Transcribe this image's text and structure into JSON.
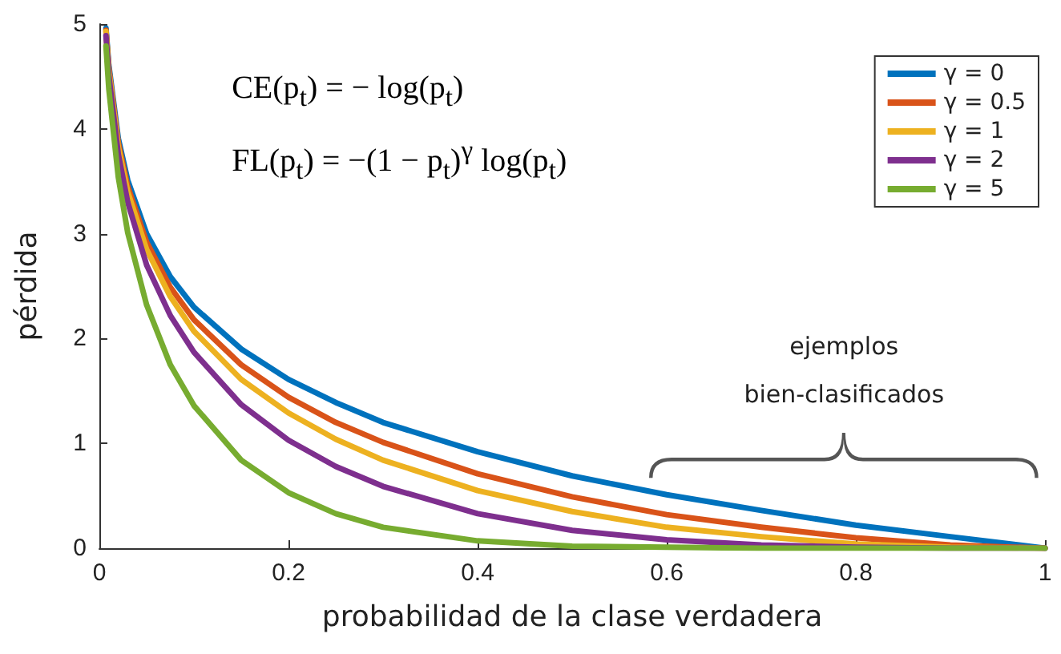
{
  "chart_data": {
    "type": "line",
    "xlabel": "probabilidad de la clase verdadera",
    "ylabel": "pérdida",
    "x": [
      0.007,
      0.01,
      0.02,
      0.03,
      0.05,
      0.075,
      0.1,
      0.15,
      0.2,
      0.25,
      0.3,
      0.4,
      0.5,
      0.6,
      0.7,
      0.8,
      0.9,
      1.0
    ],
    "series": [
      {
        "name": "γ = 0",
        "color": "#0072bd",
        "values": [
          4.96,
          4.61,
          3.91,
          3.51,
          3.0,
          2.59,
          2.3,
          1.9,
          1.61,
          1.39,
          1.2,
          0.92,
          0.69,
          0.51,
          0.36,
          0.22,
          0.11,
          0
        ]
      },
      {
        "name": "γ = 0.5",
        "color": "#d95319",
        "values": [
          4.94,
          4.58,
          3.87,
          3.45,
          2.92,
          2.49,
          2.18,
          1.75,
          1.44,
          1.2,
          1.01,
          0.71,
          0.49,
          0.32,
          0.2,
          0.1,
          0.03,
          0
        ]
      },
      {
        "name": "γ = 1",
        "color": "#edb120",
        "values": [
          4.93,
          4.56,
          3.83,
          3.4,
          2.85,
          2.4,
          2.07,
          1.61,
          1.29,
          1.04,
          0.84,
          0.55,
          0.35,
          0.2,
          0.11,
          0.04,
          0.01,
          0
        ]
      },
      {
        "name": "γ = 2",
        "color": "#7e2f8e",
        "values": [
          4.89,
          4.51,
          3.76,
          3.3,
          2.7,
          2.22,
          1.87,
          1.37,
          1.03,
          0.78,
          0.59,
          0.33,
          0.17,
          0.08,
          0.03,
          0.01,
          0,
          0
        ]
      },
      {
        "name": "γ = 5",
        "color": "#77ac30",
        "values": [
          4.79,
          4.38,
          3.54,
          3.01,
          2.32,
          1.75,
          1.36,
          0.84,
          0.53,
          0.33,
          0.2,
          0.07,
          0.02,
          0.01,
          0,
          0,
          0,
          0
        ]
      }
    ],
    "xlim": [
      0,
      1
    ],
    "xticks": [
      0,
      {
        "value": 0.2,
        "label": "0.2"
      },
      {
        "value": 0.4,
        "label": "0.4"
      },
      {
        "value": 0.6,
        "label": "0.6"
      },
      {
        "value": 0.8,
        "label": "0.8"
      },
      1
    ],
    "ylim": [
      0,
      5
    ],
    "yticks": [
      0,
      1,
      2,
      3,
      4,
      5
    ],
    "annotations": [
      "CE(p$_{t}$) = − log(p$_{t}$)",
      "FL(p$_{t}$) = −(1 − p$_{t}$)$^{γ}$ log(p$_{t}$)",
      "ejemplos bien-clasificados"
    ],
    "legend": "top right",
    "grid": false,
    "marker": "none",
    "line_style": "solid"
  }
}
